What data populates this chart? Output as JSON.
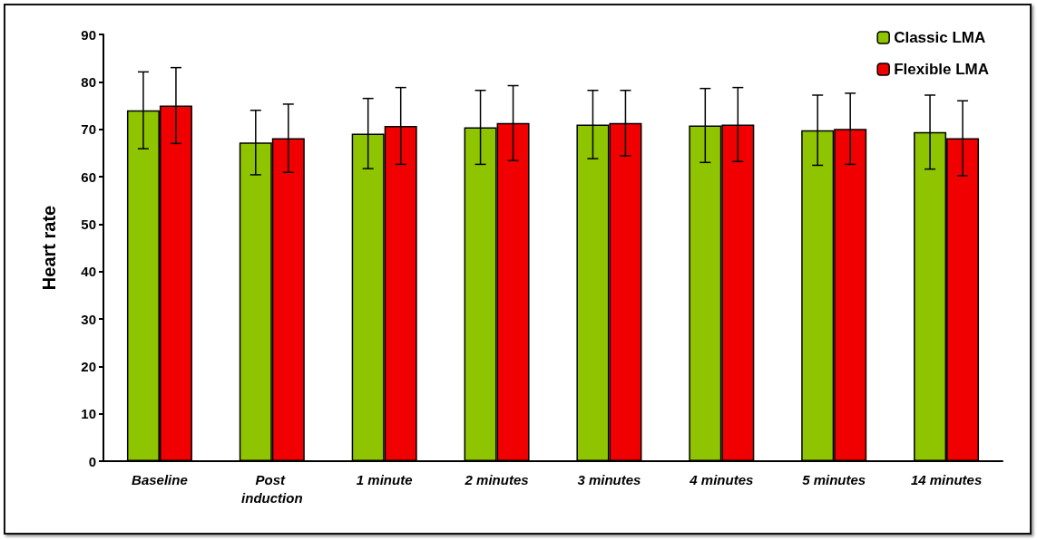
{
  "chart_data": {
    "type": "bar",
    "ylabel": "Heart rate",
    "categories": [
      "Baseline",
      "Post induction",
      "1 minute",
      "2 minutes",
      "3 minutes",
      "4 minutes",
      "5 minutes",
      "14 minutes"
    ],
    "series": [
      {
        "name": "Classic LMA",
        "color": "#8fc400",
        "values": [
          74,
          67.2,
          69.1,
          70.4,
          71,
          70.8,
          69.8,
          69.4
        ],
        "errors": [
          8.1,
          6.8,
          7.4,
          7.8,
          7.2,
          7.8,
          7.4,
          7.8
        ]
      },
      {
        "name": "Flexible LMA",
        "color": "#f00000",
        "values": [
          75,
          68.1,
          70.7,
          71.3,
          71.3,
          71,
          70.1,
          68.1
        ],
        "errors": [
          8,
          7.2,
          8.1,
          7.9,
          6.9,
          7.8,
          7.5,
          7.9
        ]
      }
    ],
    "ylim": [
      0,
      90
    ],
    "yticks": [
      0,
      10,
      20,
      30,
      40,
      50,
      60,
      70,
      80,
      90
    ],
    "grid": false,
    "legend": "top right"
  }
}
